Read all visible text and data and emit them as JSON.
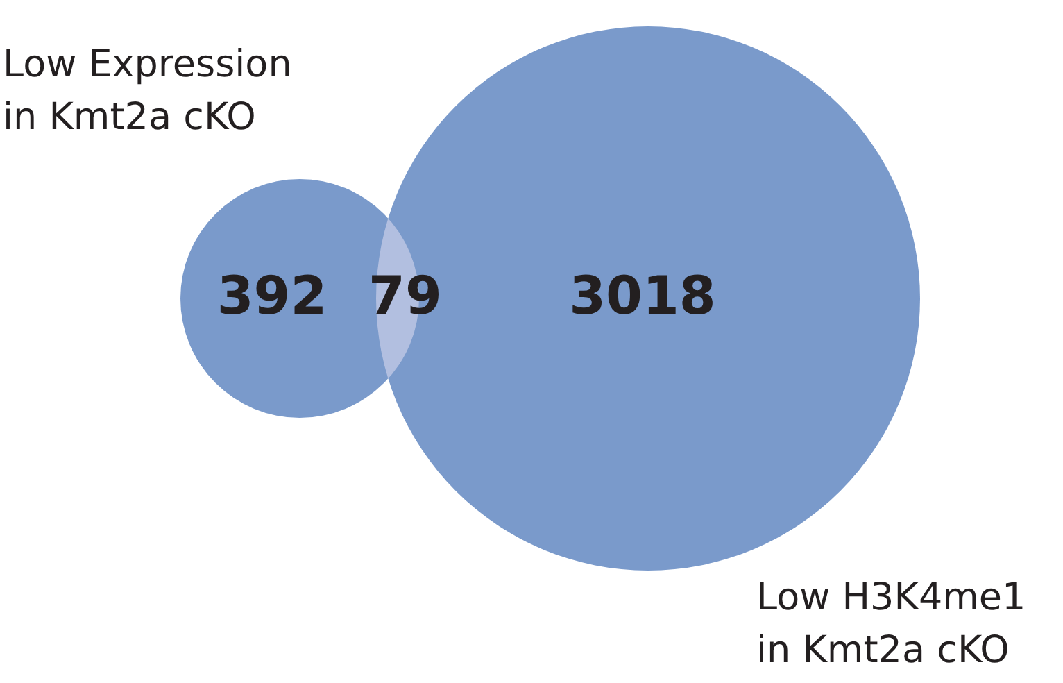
{
  "chart_data": {
    "type": "other",
    "categories": [
      null,
      null,
      null
    ],
    "values": [
      392,
      79,
      3018
    ],
    "colors": [
      "#7a9acb",
      "#b2bfe0",
      "#7a9acb"
    ],
    "data_labels": true,
    "annotations": [
      "Low Expression in Kmt2a cKO",
      "Low H3K4me1 in Kmt2a cKO"
    ]
  }
}
